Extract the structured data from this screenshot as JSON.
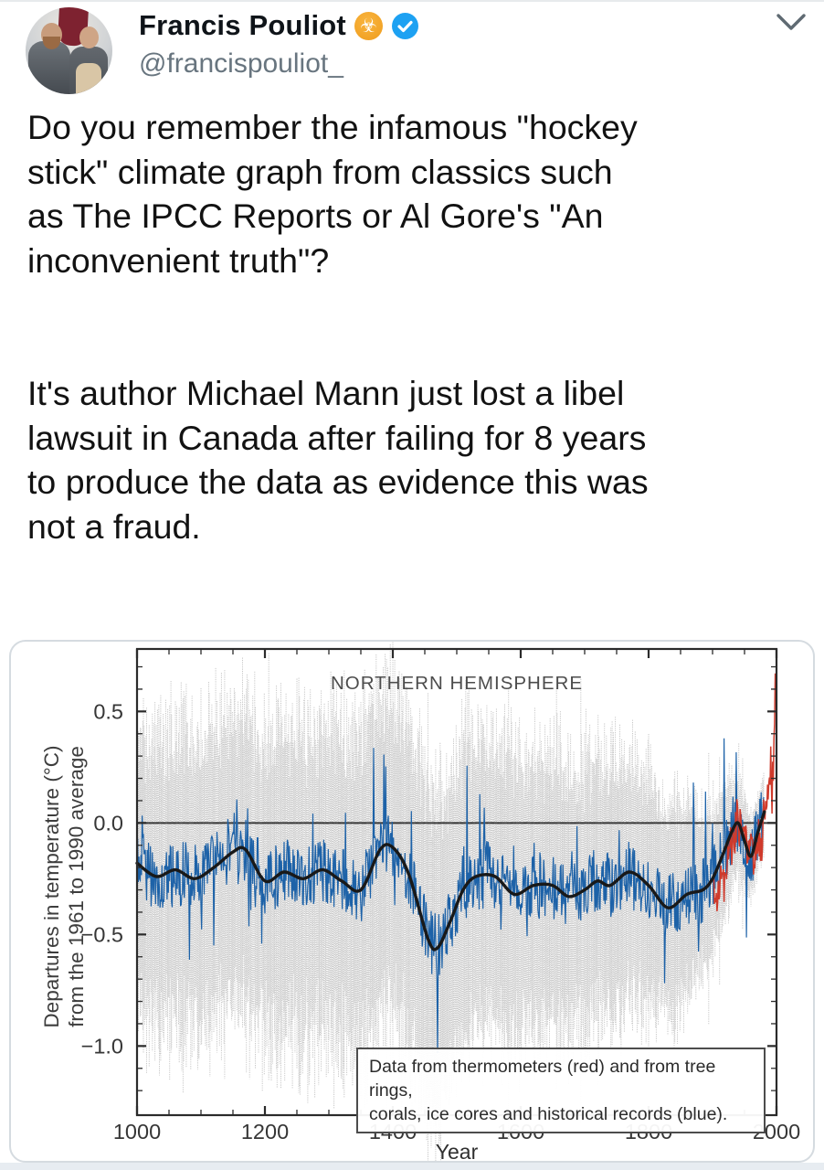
{
  "header": {
    "display_name": "Francis Pouliot",
    "handle": "@francispouliot_",
    "emoji_badge": "☣",
    "verified_label": "verified"
  },
  "tweet": {
    "lines": [
      "Do you remember the infamous \"hockey",
      "stick\" climate graph from classics such",
      "as The IPCC Reports or Al Gore's \"An",
      "inconvenient truth\"?",
      "",
      "",
      "It's author Michael Mann just lost a libel",
      "lawsuit in Canada after failing for 8 years",
      "to produce the data as evidence this was",
      "not a fraud."
    ]
  },
  "chart_data": {
    "type": "line",
    "title": "NORTHERN HEMISPHERE",
    "xlabel": "Year",
    "ylabel": "Departures in temperature (°C)\nfrom the 1961 to 1990 average",
    "legend_text": "Data from thermometers (red) and from tree rings,\ncorals, ice cores and historical records (blue).",
    "legend_position": "bottom-right-inside",
    "grid": false,
    "xlim": [
      1000,
      2000
    ],
    "ylim": [
      -1.31,
      0.78
    ],
    "xticks": {
      "values": [
        1000,
        1200,
        1400,
        1600,
        1800,
        2000
      ],
      "labels": [
        "1000",
        "1200",
        "1400",
        "1600",
        "1800",
        "2000"
      ],
      "minor_step": 50
    },
    "yticks": {
      "values": [
        0.5,
        0.0,
        -0.5,
        -1.0
      ],
      "labels": [
        "0.5",
        "0.0",
        "−0.5",
        "−1.0"
      ],
      "minor_step": 0.1,
      "minor_range": [
        -1.2,
        0.7
      ]
    },
    "colors": {
      "instrumental": "#cf3a2b",
      "proxy": "#1d62a8",
      "smoothed": "#191919",
      "uncertainty": "#c7c7c7",
      "zero_line": "#3a3a3a",
      "frame": "#2b2b2b"
    },
    "annual_years": [
      1000,
      1980
    ],
    "instrumental_years": [
      1902,
      1998
    ],
    "series": {
      "smoothed_40yr": {
        "name": "40-year smoothed reconstruction (black)",
        "points": [
          [
            1000,
            -0.18
          ],
          [
            1030,
            -0.24
          ],
          [
            1060,
            -0.21
          ],
          [
            1090,
            -0.25
          ],
          [
            1120,
            -0.2
          ],
          [
            1150,
            -0.13
          ],
          [
            1170,
            -0.12
          ],
          [
            1200,
            -0.26
          ],
          [
            1230,
            -0.22
          ],
          [
            1260,
            -0.25
          ],
          [
            1290,
            -0.21
          ],
          [
            1320,
            -0.26
          ],
          [
            1350,
            -0.3
          ],
          [
            1380,
            -0.12
          ],
          [
            1400,
            -0.11
          ],
          [
            1425,
            -0.23
          ],
          [
            1455,
            -0.52
          ],
          [
            1470,
            -0.56
          ],
          [
            1490,
            -0.44
          ],
          [
            1510,
            -0.3
          ],
          [
            1530,
            -0.24
          ],
          [
            1560,
            -0.24
          ],
          [
            1590,
            -0.32
          ],
          [
            1620,
            -0.28
          ],
          [
            1650,
            -0.28
          ],
          [
            1675,
            -0.33
          ],
          [
            1700,
            -0.3
          ],
          [
            1720,
            -0.26
          ],
          [
            1740,
            -0.28
          ],
          [
            1770,
            -0.22
          ],
          [
            1800,
            -0.28
          ],
          [
            1830,
            -0.38
          ],
          [
            1860,
            -0.32
          ],
          [
            1885,
            -0.3
          ],
          [
            1900,
            -0.25
          ],
          [
            1915,
            -0.15
          ],
          [
            1930,
            -0.04
          ],
          [
            1940,
            0.0
          ],
          [
            1950,
            -0.08
          ],
          [
            1960,
            -0.15
          ],
          [
            1970,
            -0.05
          ],
          [
            1981,
            0.05
          ]
        ]
      },
      "instrumental_annual": {
        "name": "thermometers (red)",
        "points": [
          [
            1902,
            -0.26
          ],
          [
            1906,
            -0.32
          ],
          [
            1910,
            -0.33
          ],
          [
            1914,
            -0.22
          ],
          [
            1918,
            -0.28
          ],
          [
            1922,
            -0.2
          ],
          [
            1926,
            -0.12
          ],
          [
            1930,
            -0.1
          ],
          [
            1934,
            -0.06
          ],
          [
            1938,
            0.02
          ],
          [
            1942,
            -0.02
          ],
          [
            1944,
            0.04
          ],
          [
            1948,
            -0.1
          ],
          [
            1952,
            -0.06
          ],
          [
            1956,
            -0.16
          ],
          [
            1960,
            -0.08
          ],
          [
            1964,
            -0.2
          ],
          [
            1968,
            -0.14
          ],
          [
            1972,
            -0.04
          ],
          [
            1976,
            -0.14
          ],
          [
            1980,
            0.06
          ],
          [
            1984,
            0.06
          ],
          [
            1988,
            0.18
          ],
          [
            1991,
            0.25
          ],
          [
            1993,
            0.14
          ],
          [
            1995,
            0.28
          ],
          [
            1997,
            0.4
          ],
          [
            1998,
            0.62
          ]
        ]
      },
      "uncertainty_band": {
        "name": "95% confidence band (gray)",
        "halfwidth_points": [
          [
            1000,
            0.46
          ],
          [
            1100,
            0.52
          ],
          [
            1200,
            0.5
          ],
          [
            1300,
            0.53
          ],
          [
            1400,
            0.55
          ],
          [
            1500,
            0.52
          ],
          [
            1600,
            0.46
          ],
          [
            1650,
            0.44
          ],
          [
            1700,
            0.43
          ],
          [
            1750,
            0.42
          ],
          [
            1800,
            0.4
          ],
          [
            1850,
            0.33
          ],
          [
            1900,
            0.25
          ],
          [
            1930,
            0.18
          ],
          [
            1960,
            0.13
          ],
          [
            1980,
            0.11
          ]
        ]
      }
    },
    "noise": {
      "seed": 11,
      "proxy_amplitude": 0.15,
      "proxy_spike_chance": 0.08,
      "proxy_spike_amplitude": 0.45,
      "instrumental_amplitude": 0.1,
      "band_extra_spike_chance": 0.06
    }
  }
}
